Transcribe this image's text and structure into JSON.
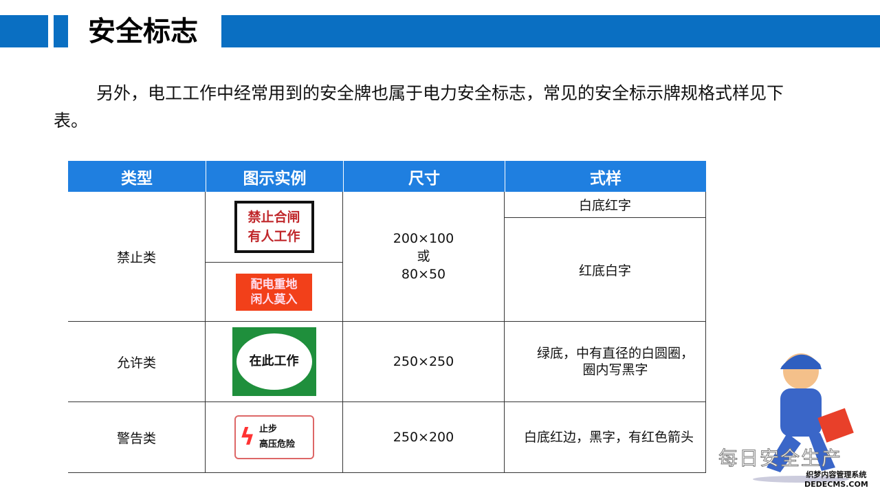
{
  "header": {
    "title": "安全标志",
    "accent": "#0a6fc2"
  },
  "intro": "另外，电工工作中经常用到的安全牌也属于电力安全标志，常见的安全标示牌规格式样见下表。",
  "table": {
    "headers": [
      "类型",
      "图示实例",
      "尺寸",
      "式样"
    ],
    "rows": [
      {
        "type": "禁止类",
        "signs": [
          {
            "lines": [
              "禁止合闸",
              "有人工作"
            ],
            "style": "白底红字"
          },
          {
            "lines": [
              "配电重地",
              "闲人莫入"
            ],
            "style": "红底白字"
          }
        ],
        "size": [
          "200×100",
          "或",
          "80×50"
        ]
      },
      {
        "type": "允许类",
        "sign": {
          "lines": [
            "在此工作"
          ]
        },
        "size": "250×250",
        "style": "绿底，中有直径的白圆圈，圈内写黑字"
      },
      {
        "type": "警告类",
        "sign": {
          "lines": [
            "止步",
            "高压危险"
          ]
        },
        "size": "250×200",
        "style": "白底红边，黑字，有红色箭头"
      }
    ]
  },
  "branding": {
    "name": "每日安全生产",
    "watermark": [
      "织梦内容管理系统",
      "DEDECMS.COM"
    ]
  }
}
